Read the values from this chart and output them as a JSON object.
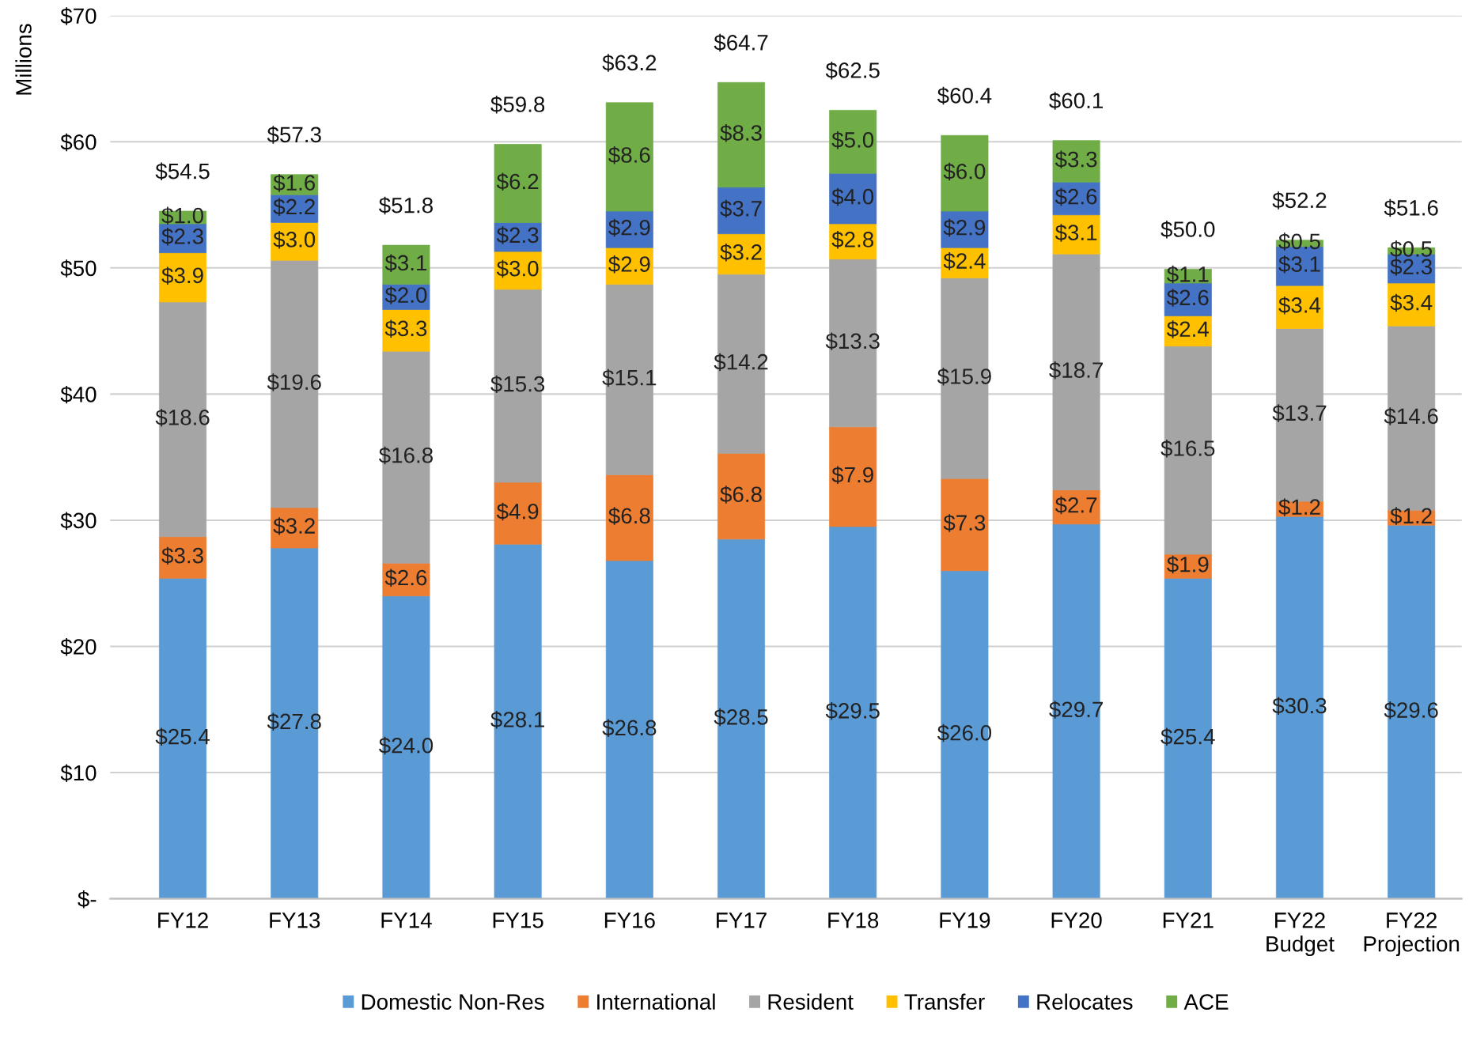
{
  "chart_data": {
    "type": "bar",
    "stacked": true,
    "ylabel": "Millions",
    "categories": [
      "FY12",
      "FY13",
      "FY14",
      "FY15",
      "FY16",
      "FY17",
      "FY18",
      "FY19",
      "FY20",
      "FY21",
      "FY22\nBudget",
      "FY22\nProjection"
    ],
    "series": [
      {
        "name": "Domestic Non-Res",
        "color": "#5b9bd5",
        "values": [
          25.4,
          27.8,
          24.0,
          28.1,
          26.8,
          28.5,
          29.5,
          26.0,
          29.7,
          25.4,
          30.3,
          29.6
        ],
        "value_labels": [
          "$25.4",
          "$27.8",
          "$24.0",
          "$28.1",
          "$26.8",
          "$28.5",
          "$29.5",
          "$26.0",
          "$29.7",
          "$25.4",
          "$30.3",
          "$29.6"
        ]
      },
      {
        "name": "International",
        "color": "#ed7d31",
        "values": [
          3.3,
          3.2,
          2.6,
          4.9,
          6.8,
          6.8,
          7.9,
          7.3,
          2.7,
          1.9,
          1.2,
          1.2
        ],
        "value_labels": [
          "$3.3",
          "$3.2",
          "$2.6",
          "$4.9",
          "$6.8",
          "$6.8",
          "$7.9",
          "$7.3",
          "$2.7",
          "$1.9",
          "$1.2",
          "$1.2"
        ]
      },
      {
        "name": "Resident",
        "color": "#a5a5a5",
        "values": [
          18.6,
          19.6,
          16.8,
          15.3,
          15.1,
          14.2,
          13.3,
          15.9,
          18.7,
          16.5,
          13.7,
          14.6
        ],
        "value_labels": [
          "$18.6",
          "$19.6",
          "$16.8",
          "$15.3",
          "$15.1",
          "$14.2",
          "$13.3",
          "$15.9",
          "$18.7",
          "$16.5",
          "$13.7",
          "$14.6"
        ]
      },
      {
        "name": "Transfer",
        "color": "#ffc000",
        "values": [
          3.9,
          3.0,
          3.3,
          3.0,
          2.9,
          3.2,
          2.8,
          2.4,
          3.1,
          2.4,
          3.4,
          3.4
        ],
        "value_labels": [
          "$3.9",
          "$3.0",
          "$3.3",
          "$3.0",
          "$2.9",
          "$3.2",
          "$2.8",
          "$2.4",
          "$3.1",
          "$2.4",
          "$3.4",
          "$3.4"
        ]
      },
      {
        "name": "Relocates",
        "color": "#4472c4",
        "values": [
          2.3,
          2.2,
          2.0,
          2.3,
          2.9,
          3.7,
          4.0,
          2.9,
          2.6,
          2.6,
          3.1,
          2.3
        ],
        "value_labels": [
          "$2.3",
          "$2.2",
          "$2.0",
          "$2.3",
          "$2.9",
          "$3.7",
          "$4.0",
          "$2.9",
          "$2.6",
          "$2.6",
          "$3.1",
          "$2.3"
        ]
      },
      {
        "name": "ACE",
        "color": "#70ad47",
        "values": [
          1.0,
          1.6,
          3.1,
          6.2,
          8.6,
          8.3,
          5.0,
          6.0,
          3.3,
          1.1,
          0.5,
          0.5
        ],
        "value_labels": [
          "$1.0",
          "$1.6",
          "$3.1",
          "$6.2",
          "$8.6",
          "$8.3",
          "$5.0",
          "$6.0",
          "$3.3",
          "$1.1",
          "$0.5",
          "$0.5"
        ]
      }
    ],
    "totals": [
      "$54.5",
      "$57.3",
      "$51.8",
      "$59.8",
      "$63.2",
      "$64.7",
      "$62.5",
      "$60.4",
      "$60.1",
      "$50.0",
      "$52.2",
      "$51.6"
    ],
    "ylim": [
      0,
      70
    ],
    "yticks": [
      {
        "value": 0,
        "label": "$-"
      },
      {
        "value": 10,
        "label": "$10"
      },
      {
        "value": 20,
        "label": "$20"
      },
      {
        "value": 30,
        "label": "$30"
      },
      {
        "value": 40,
        "label": "$40"
      },
      {
        "value": 50,
        "label": "$50"
      },
      {
        "value": 60,
        "label": "$60"
      },
      {
        "value": 70,
        "label": "$70"
      }
    ],
    "grid": "y",
    "legend": "bottom"
  }
}
